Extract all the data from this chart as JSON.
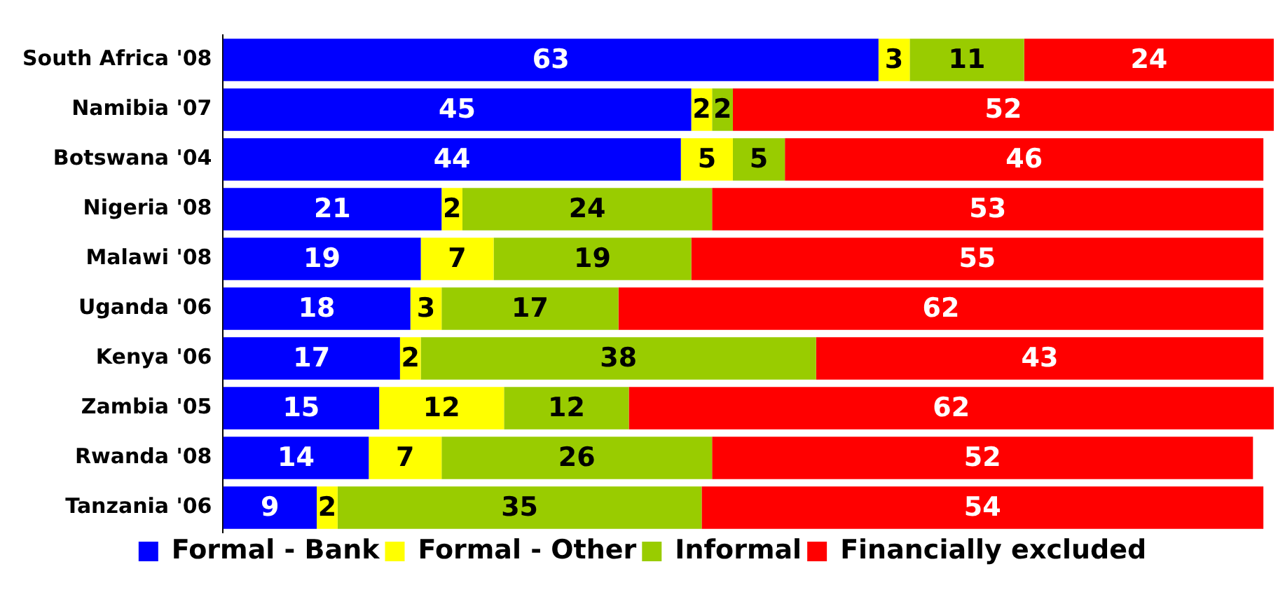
{
  "chart_data": {
    "type": "bar",
    "orientation": "horizontal",
    "stacked": true,
    "data_labels": true,
    "legend": "bottom",
    "tick_labels": "y",
    "xlim": [
      0,
      101
    ],
    "categories": [
      "South Africa '08",
      "Namibia '07",
      "Botswana '04",
      "Nigeria '08",
      "Malawi '08",
      "Uganda '06",
      "Kenya '06",
      "Zambia '05",
      "Rwanda '08",
      "Tanzania '06"
    ],
    "series": [
      {
        "name": "Formal - Bank",
        "color": "#0000ff",
        "values": [
          63,
          45,
          44,
          21,
          19,
          18,
          17,
          15,
          14,
          9
        ]
      },
      {
        "name": "Formal - Other",
        "color": "#ffff00",
        "values": [
          3,
          2,
          5,
          2,
          7,
          3,
          2,
          12,
          7,
          2
        ]
      },
      {
        "name": "Informal",
        "color": "#99cc00",
        "values": [
          11,
          2,
          5,
          24,
          19,
          17,
          38,
          12,
          26,
          35
        ]
      },
      {
        "name": "Financially excluded",
        "color": "#ff0000",
        "values": [
          24,
          52,
          46,
          53,
          55,
          62,
          43,
          62,
          52,
          54
        ]
      }
    ]
  }
}
